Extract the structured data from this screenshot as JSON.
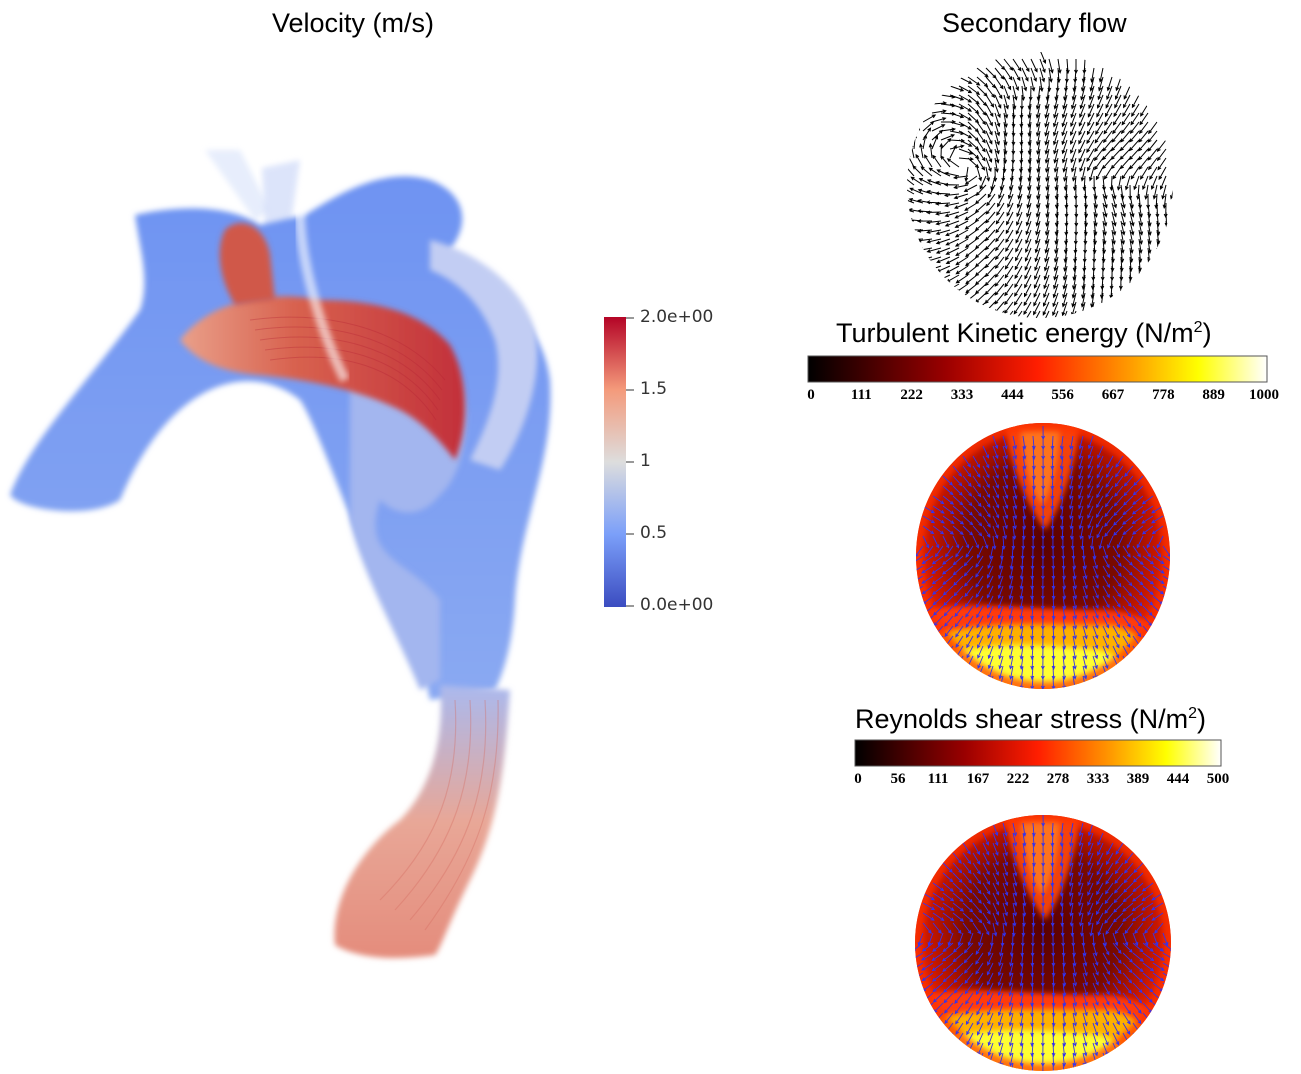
{
  "velocity": {
    "title": "Velocity (m/s)",
    "colorbar": {
      "min_label": "0.0e+00",
      "max_label": "2.0e+00",
      "ticks": [
        "1.5",
        "1",
        "0.5"
      ],
      "colors": [
        "#3b4cc0",
        "#dddddd",
        "#b40426"
      ]
    }
  },
  "secondary_flow": {
    "title": "Secondary flow"
  },
  "tke": {
    "title_text": "Turbulent Kinetic energy (N/m",
    "title_sup": "2",
    "title_close": ")",
    "ticks": [
      "0",
      "111",
      "222",
      "333",
      "444",
      "556",
      "667",
      "778",
      "889",
      "1000"
    ]
  },
  "rss": {
    "title_text": "Reynolds shear stress (N/m",
    "title_sup": "2",
    "title_close": ")",
    "ticks": [
      "0",
      "56",
      "111",
      "167",
      "222",
      "278",
      "333",
      "389",
      "444",
      "500"
    ]
  },
  "colors": {
    "vector_black": "#000000",
    "vector_blue": "#3333ee",
    "hot_scale": [
      "#000000",
      "#8b0000",
      "#ff2000",
      "#ff9000",
      "#ffff00",
      "#ffffff"
    ]
  }
}
